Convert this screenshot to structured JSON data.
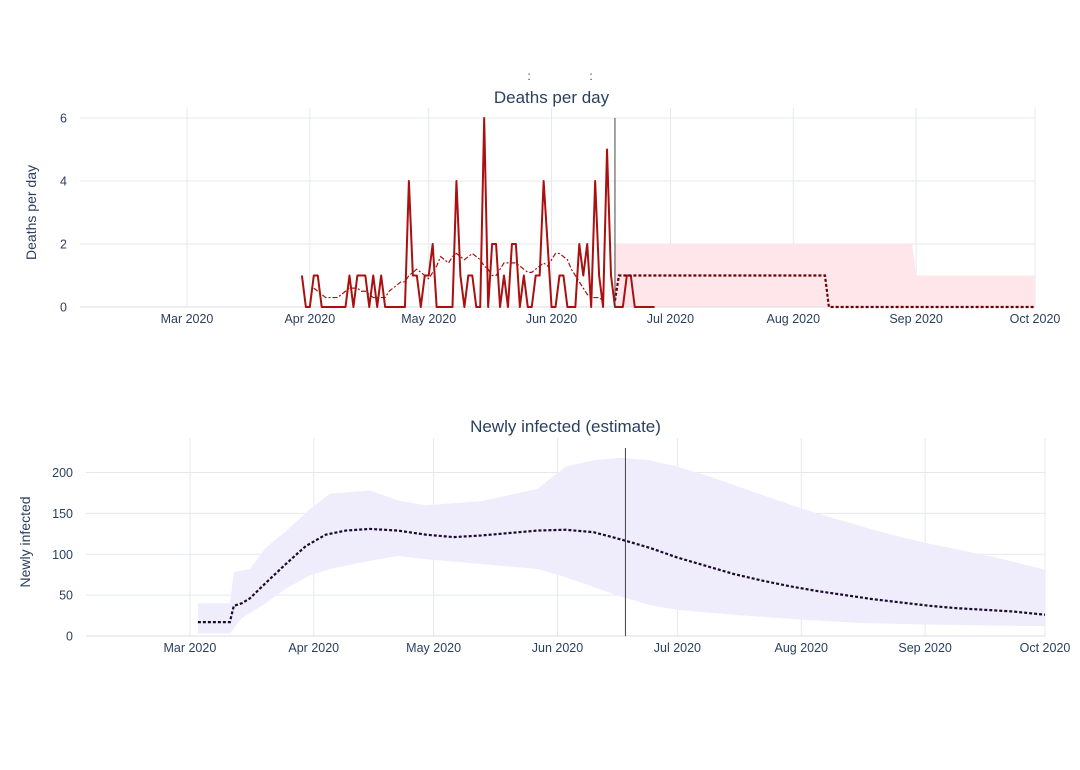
{
  "stray_marks": [
    ":",
    ":"
  ],
  "chart_data": [
    {
      "type": "line",
      "title": "Deaths per day",
      "xlabel": "",
      "ylabel": "Deaths per day",
      "ylim": [
        0,
        6
      ],
      "xlim": [
        "2020-02-03",
        "2020-10-01"
      ],
      "x_tick_labels": [
        {
          "date": "2020-03-01",
          "label": "Mar 2020"
        },
        {
          "date": "2020-04-01",
          "label": "Apr 2020"
        },
        {
          "date": "2020-05-01",
          "label": "May 2020"
        },
        {
          "date": "2020-06-01",
          "label": "Jun 2020"
        },
        {
          "date": "2020-07-01",
          "label": "Jul 2020"
        },
        {
          "date": "2020-08-01",
          "label": "Aug 2020"
        },
        {
          "date": "2020-09-01",
          "label": "Sep 2020"
        },
        {
          "date": "2020-10-01",
          "label": "Oct 2020"
        }
      ],
      "y_ticks": [
        0,
        2,
        4,
        6
      ],
      "grid": true,
      "vline_date": "2020-06-17",
      "series": [
        {
          "kind": "observed",
          "color": "#aa1010",
          "start": "2020-03-30",
          "values": [
            1,
            0,
            0,
            1,
            1,
            0,
            0,
            0,
            0,
            0,
            0,
            0,
            1,
            0,
            1,
            1,
            1,
            0,
            1,
            0,
            1,
            0,
            0,
            0,
            0,
            0,
            0,
            4,
            1,
            1,
            0,
            1,
            1,
            2,
            0,
            0,
            0,
            0,
            0,
            4,
            1,
            0,
            1,
            1,
            0,
            0,
            6,
            0,
            2,
            2,
            0,
            1,
            0,
            2,
            2,
            0,
            1,
            0,
            0,
            1,
            1,
            4,
            2,
            0,
            0,
            1,
            1,
            0,
            0,
            0,
            2,
            1,
            2,
            0,
            4,
            1,
            0,
            5,
            1,
            0,
            0,
            0,
            1,
            1,
            0,
            0,
            0,
            0,
            0,
            0
          ]
        },
        {
          "kind": "rolling_average",
          "color": "#aa1010",
          "start": "2020-04-02",
          "values": [
            0.6,
            0.5,
            0.4,
            0.3,
            0.3,
            0.3,
            0.3,
            0.4,
            0.5,
            0.6,
            0.6,
            0.6,
            0.5,
            0.5,
            0.4,
            0.3,
            0.3,
            0.3,
            0.3,
            0.5,
            0.6,
            0.7,
            0.8,
            0.8,
            1.0,
            1.1,
            1.2,
            1.1,
            1.0,
            0.9,
            1.1,
            1.3,
            1.6,
            1.5,
            1.4,
            1.6,
            1.7,
            1.6,
            1.5,
            1.6,
            1.7,
            1.6,
            1.5,
            1.3,
            1.2,
            1.0,
            1.0,
            1.2,
            1.4,
            1.4,
            1.4,
            1.4,
            1.3,
            1.2,
            1.1,
            1.1,
            1.2,
            1.3,
            1.4,
            1.3,
            1.5,
            1.7,
            1.7,
            1.6,
            1.5,
            1.2,
            1.0,
            0.8,
            0.6,
            0.4,
            0.3,
            0.3,
            0.3,
            0.2
          ]
        },
        {
          "kind": "projection",
          "color": "#6e0000",
          "points": [
            [
              "2020-06-17",
              0.2
            ],
            [
              "2020-06-18",
              1
            ],
            [
              "2020-08-09",
              1
            ],
            [
              "2020-08-10",
              0
            ],
            [
              "2020-10-01",
              0
            ]
          ]
        }
      ],
      "band": {
        "color": "#ffe6ea",
        "points": [
          [
            "2020-06-17",
            2
          ],
          [
            "2020-08-31",
            2
          ],
          [
            "2020-09-01",
            1
          ],
          [
            "2020-10-01",
            1
          ]
        ],
        "lower": 0
      }
    },
    {
      "type": "area",
      "title": "Newly infected (estimate)",
      "xlabel": "",
      "ylabel": "Newly infected",
      "ylim": [
        0,
        230
      ],
      "xlim": [
        "2020-02-04",
        "2020-10-01"
      ],
      "x_tick_labels": [
        {
          "date": "2020-03-01",
          "label": "Mar 2020"
        },
        {
          "date": "2020-04-01",
          "label": "Apr 2020"
        },
        {
          "date": "2020-05-01",
          "label": "May 2020"
        },
        {
          "date": "2020-06-01",
          "label": "Jun 2020"
        },
        {
          "date": "2020-07-01",
          "label": "Jul 2020"
        },
        {
          "date": "2020-08-01",
          "label": "Aug 2020"
        },
        {
          "date": "2020-09-01",
          "label": "Sep 2020"
        },
        {
          "date": "2020-10-01",
          "label": "Oct 2020"
        }
      ],
      "y_ticks": [
        0,
        50,
        100,
        150,
        200
      ],
      "grid": true,
      "vline_date": "2020-06-18",
      "series": [
        {
          "kind": "estimate",
          "color": "#1a0a2e",
          "points": [
            [
              "2020-03-03",
              17
            ],
            [
              "2020-03-11",
              17
            ],
            [
              "2020-03-12",
              37
            ],
            [
              "2020-03-14",
              40
            ],
            [
              "2020-03-16",
              46
            ],
            [
              "2020-03-20",
              65
            ],
            [
              "2020-03-25",
              88
            ],
            [
              "2020-03-30",
              110
            ],
            [
              "2020-04-04",
              124
            ],
            [
              "2020-04-09",
              129
            ],
            [
              "2020-04-15",
              131
            ],
            [
              "2020-04-22",
              129
            ],
            [
              "2020-04-29",
              124
            ],
            [
              "2020-05-06",
              121
            ],
            [
              "2020-05-13",
              123
            ],
            [
              "2020-05-20",
              126
            ],
            [
              "2020-05-27",
              129
            ],
            [
              "2020-06-03",
              130
            ],
            [
              "2020-06-10",
              127
            ],
            [
              "2020-06-17",
              118
            ],
            [
              "2020-06-24",
              108
            ],
            [
              "2020-07-01",
              96
            ],
            [
              "2020-07-08",
              86
            ],
            [
              "2020-07-15",
              76
            ],
            [
              "2020-07-22",
              68
            ],
            [
              "2020-07-29",
              61
            ],
            [
              "2020-08-05",
              55
            ],
            [
              "2020-08-12",
              50
            ],
            [
              "2020-08-19",
              45
            ],
            [
              "2020-08-26",
              41
            ],
            [
              "2020-09-02",
              37
            ],
            [
              "2020-09-09",
              34
            ],
            [
              "2020-09-16",
              32
            ],
            [
              "2020-09-23",
              30
            ],
            [
              "2020-10-01",
              26
            ]
          ]
        }
      ],
      "band": {
        "color": "#efedfc",
        "upper": [
          [
            "2020-03-03",
            40
          ],
          [
            "2020-03-11",
            40
          ],
          [
            "2020-03-12",
            78
          ],
          [
            "2020-03-16",
            82
          ],
          [
            "2020-03-20",
            108
          ],
          [
            "2020-03-25",
            128
          ],
          [
            "2020-03-31",
            155
          ],
          [
            "2020-04-05",
            174
          ],
          [
            "2020-04-15",
            178
          ],
          [
            "2020-04-22",
            166
          ],
          [
            "2020-04-29",
            160
          ],
          [
            "2020-05-13",
            165
          ],
          [
            "2020-05-27",
            180
          ],
          [
            "2020-06-03",
            207
          ],
          [
            "2020-06-10",
            215
          ],
          [
            "2020-06-17",
            218
          ],
          [
            "2020-06-24",
            215
          ],
          [
            "2020-07-01",
            207
          ],
          [
            "2020-07-08",
            197
          ],
          [
            "2020-07-15",
            185
          ],
          [
            "2020-07-22",
            173
          ],
          [
            "2020-07-29",
            161
          ],
          [
            "2020-08-05",
            150
          ],
          [
            "2020-08-12",
            140
          ],
          [
            "2020-08-19",
            130
          ],
          [
            "2020-08-26",
            121
          ],
          [
            "2020-09-02",
            113
          ],
          [
            "2020-09-09",
            106
          ],
          [
            "2020-09-16",
            99
          ],
          [
            "2020-09-23",
            91
          ],
          [
            "2020-10-01",
            81
          ]
        ],
        "lower": [
          [
            "2020-03-03",
            3
          ],
          [
            "2020-03-11",
            3
          ],
          [
            "2020-03-14",
            22
          ],
          [
            "2020-03-20",
            40
          ],
          [
            "2020-03-25",
            58
          ],
          [
            "2020-03-31",
            74
          ],
          [
            "2020-04-05",
            82
          ],
          [
            "2020-04-15",
            92
          ],
          [
            "2020-04-22",
            98
          ],
          [
            "2020-04-29",
            94
          ],
          [
            "2020-05-13",
            88
          ],
          [
            "2020-05-27",
            82
          ],
          [
            "2020-06-03",
            72
          ],
          [
            "2020-06-10",
            60
          ],
          [
            "2020-06-17",
            48
          ],
          [
            "2020-06-24",
            38
          ],
          [
            "2020-07-01",
            32
          ],
          [
            "2020-07-15",
            26
          ],
          [
            "2020-08-01",
            20
          ],
          [
            "2020-08-15",
            16
          ],
          [
            "2020-09-01",
            14
          ],
          [
            "2020-09-15",
            13
          ],
          [
            "2020-10-01",
            12
          ]
        ]
      }
    }
  ]
}
